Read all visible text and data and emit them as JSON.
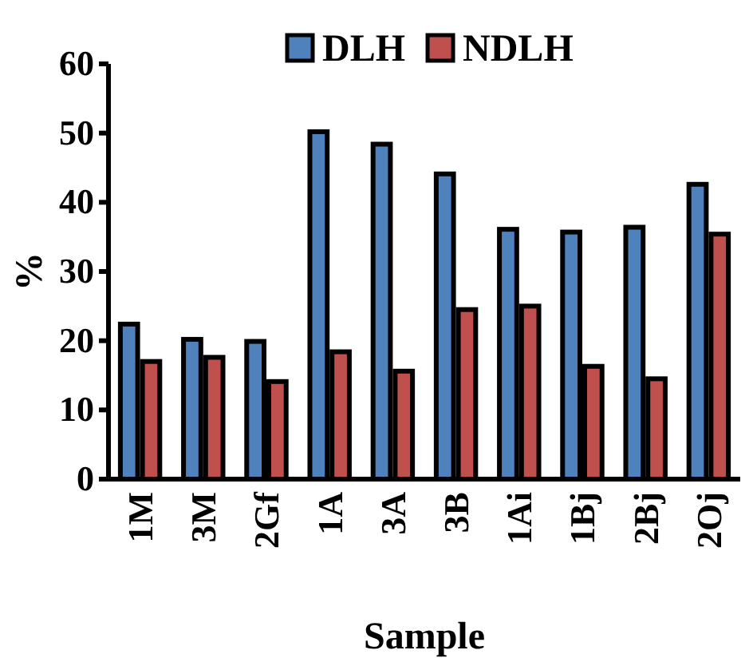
{
  "chart_data": {
    "type": "bar",
    "xlabel": "Sample",
    "ylabel": "%",
    "categories": [
      "1M",
      "3M",
      "2Gf",
      "1A",
      "3A",
      "3B",
      "1Ai",
      "1Bj",
      "2Bj",
      "2Oj"
    ],
    "series": [
      {
        "name": "DLH",
        "color": "#4f81bd",
        "values": [
          22.4,
          20.2,
          19.9,
          50.2,
          48.4,
          44.1,
          36.1,
          35.7,
          36.4,
          42.6
        ]
      },
      {
        "name": "NDLH",
        "color": "#c0504d",
        "values": [
          17.0,
          17.6,
          14.1,
          18.4,
          15.6,
          24.5,
          25.0,
          16.3,
          14.5,
          35.4
        ]
      }
    ],
    "ylim": [
      0,
      60
    ],
    "yticks": [
      0,
      10,
      20,
      30,
      40,
      50,
      60
    ],
    "grid": false,
    "legend": "top"
  }
}
